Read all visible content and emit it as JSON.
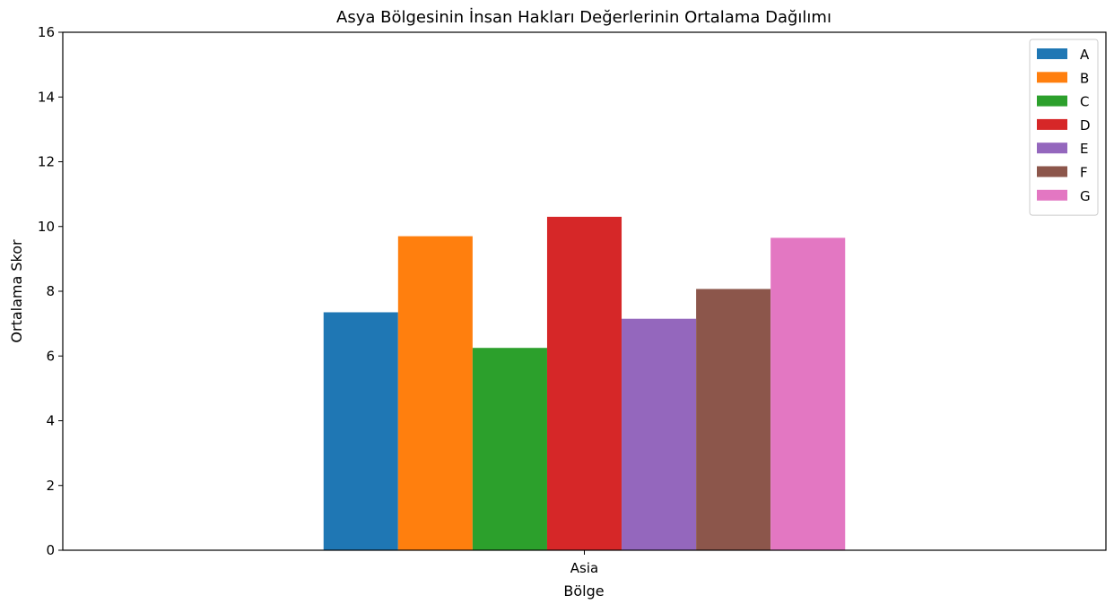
{
  "chart_data": {
    "type": "bar",
    "title": "Asya Bölgesinin İnsan Hakları Değerlerinin Ortalama Dağılımı",
    "xlabel": "Bölge",
    "ylabel": "Ortalama Skor",
    "categories": [
      "Asia"
    ],
    "ylim": [
      0,
      16
    ],
    "yticks": [
      0,
      2,
      4,
      6,
      8,
      10,
      12,
      14,
      16
    ],
    "grid": false,
    "legend_position": "top-right",
    "series": [
      {
        "name": "A",
        "values": [
          7.35
        ],
        "color": "#1f77b4"
      },
      {
        "name": "B",
        "values": [
          9.7
        ],
        "color": "#ff7f0e"
      },
      {
        "name": "C",
        "values": [
          6.25
        ],
        "color": "#2ca02c"
      },
      {
        "name": "D",
        "values": [
          10.3
        ],
        "color": "#d62728"
      },
      {
        "name": "E",
        "values": [
          7.15
        ],
        "color": "#9467bd"
      },
      {
        "name": "F",
        "values": [
          8.07
        ],
        "color": "#8c564b"
      },
      {
        "name": "G",
        "values": [
          9.65
        ],
        "color": "#e377c2"
      }
    ]
  }
}
